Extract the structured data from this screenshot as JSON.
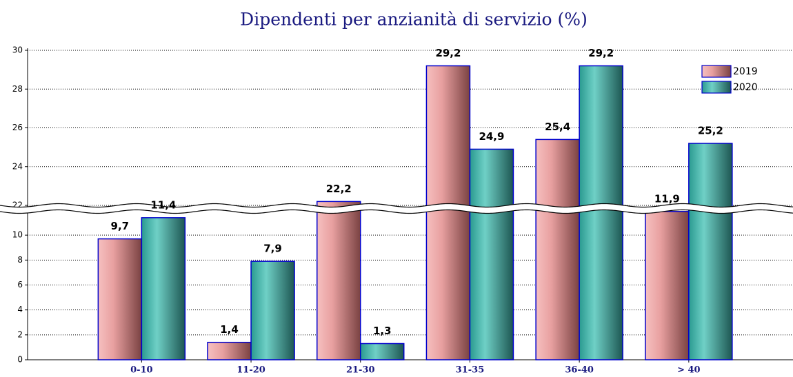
{
  "chart_data": {
    "type": "bar",
    "title": "Dipendenti per anzianità di servizio (%)",
    "categories": [
      "0-10",
      "11-20",
      "21-30",
      "31-35",
      "36-40",
      "> 40"
    ],
    "series": [
      {
        "name": "2019",
        "color": "#e8a0a0",
        "values": [
          9.7,
          1.4,
          22.2,
          29.2,
          25.4,
          11.9
        ],
        "value_labels": [
          "9,7",
          "1,4",
          "22,2",
          "29,2",
          "25,4",
          "11,9"
        ]
      },
      {
        "name": "2020",
        "color": "#2fa89e",
        "values": [
          11.4,
          7.9,
          1.3,
          24.9,
          29.2,
          25.2
        ],
        "value_labels": [
          "11,4",
          "7,9",
          "1,3",
          "24,9",
          "29,2",
          "25,2"
        ]
      }
    ],
    "ylim": [
      0,
      30
    ],
    "axis_break": [
      12,
      22
    ],
    "yticks": [
      0,
      2,
      4,
      6,
      8,
      10,
      22,
      24,
      26,
      28,
      30
    ],
    "grid": true,
    "legend": "top-right"
  }
}
